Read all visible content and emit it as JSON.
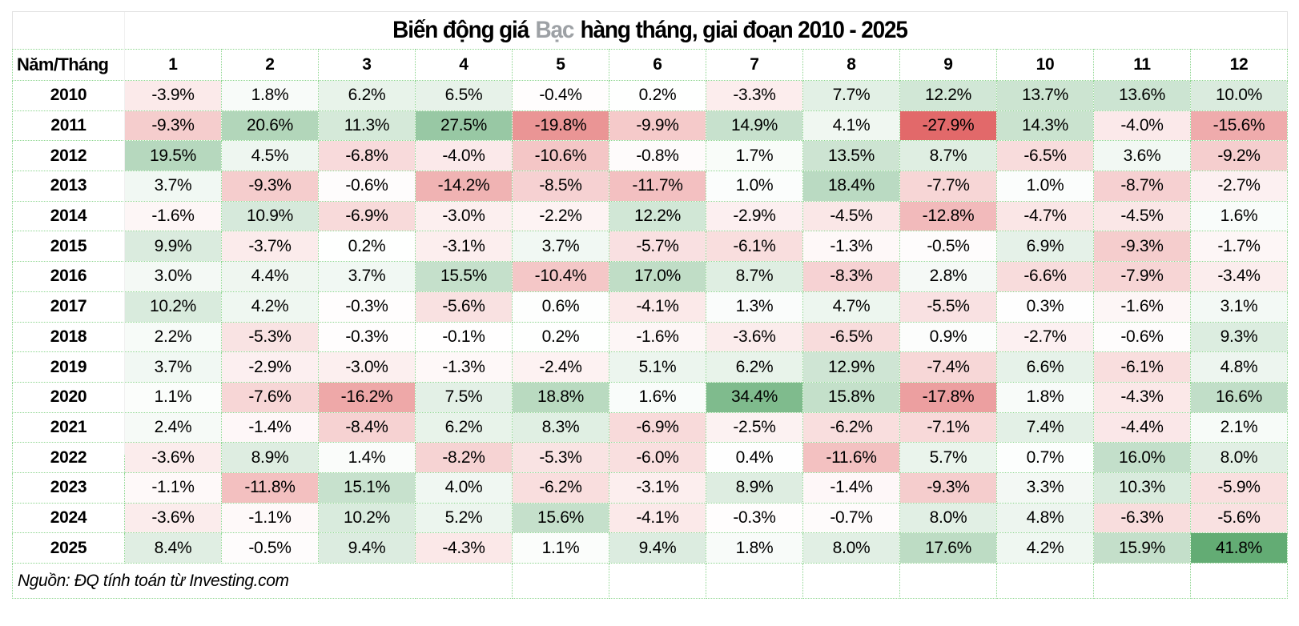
{
  "title": {
    "prefix": "Biến động giá",
    "highlight": "Bạc",
    "suffix": "hàng tháng, giai đoạn 2010 - 2025"
  },
  "table": {
    "corner_label": "Năm/Tháng",
    "month_headers": [
      "1",
      "2",
      "3",
      "4",
      "5",
      "6",
      "7",
      "8",
      "9",
      "10",
      "11",
      "12"
    ],
    "value_suffix": "%"
  },
  "footer": {
    "source": "Nguồn: ĐQ tính toán từ Investing.com"
  },
  "colors": {
    "positive_max": "#63ac74",
    "negative_max": "#e2696a",
    "grid": "#8ed690",
    "title_highlight": "#9da1a5",
    "outer_border": "#e2e2e2"
  },
  "chart_data": {
    "type": "heatmap",
    "title": "Biến động giá Bạc hàng tháng, giai đoạn 2010 - 2025",
    "xlabel": "Tháng",
    "ylabel": "Năm",
    "columns": [
      "1",
      "2",
      "3",
      "4",
      "5",
      "6",
      "7",
      "8",
      "9",
      "10",
      "11",
      "12"
    ],
    "unit": "%",
    "color_scale": {
      "min": -27.9,
      "mid": 0,
      "max": 41.8,
      "min_color": "#e2696a",
      "mid_color": "#ffffff",
      "max_color": "#63ac74"
    },
    "rows": [
      {
        "year": "2010",
        "values": [
          -3.9,
          1.8,
          6.2,
          6.5,
          -0.4,
          0.2,
          -3.3,
          7.7,
          12.2,
          13.7,
          13.6,
          10.0
        ]
      },
      {
        "year": "2011",
        "values": [
          -9.3,
          20.6,
          11.3,
          27.5,
          -19.8,
          -9.9,
          14.9,
          4.1,
          -27.9,
          14.3,
          -4.0,
          -15.6
        ]
      },
      {
        "year": "2012",
        "values": [
          19.5,
          4.5,
          -6.8,
          -4.0,
          -10.6,
          -0.8,
          1.7,
          13.5,
          8.7,
          -6.5,
          3.6,
          -9.2
        ]
      },
      {
        "year": "2013",
        "values": [
          3.7,
          -9.3,
          -0.6,
          -14.2,
          -8.5,
          -11.7,
          1.0,
          18.4,
          -7.7,
          1.0,
          -8.7,
          -2.7
        ]
      },
      {
        "year": "2014",
        "values": [
          -1.6,
          10.9,
          -6.9,
          -3.0,
          -2.2,
          12.2,
          -2.9,
          -4.5,
          -12.8,
          -4.7,
          -4.5,
          1.6
        ]
      },
      {
        "year": "2015",
        "values": [
          9.9,
          -3.7,
          0.2,
          -3.1,
          3.7,
          -5.7,
          -6.1,
          -1.3,
          -0.5,
          6.9,
          -9.3,
          -1.7
        ]
      },
      {
        "year": "2016",
        "values": [
          3.0,
          4.4,
          3.7,
          15.5,
          -10.4,
          17.0,
          8.7,
          -8.3,
          2.8,
          -6.6,
          -7.9,
          -3.4
        ]
      },
      {
        "year": "2017",
        "values": [
          10.2,
          4.2,
          -0.3,
          -5.6,
          0.6,
          -4.1,
          1.3,
          4.7,
          -5.5,
          0.3,
          -1.6,
          3.1
        ]
      },
      {
        "year": "2018",
        "values": [
          2.2,
          -5.3,
          -0.3,
          -0.1,
          0.2,
          -1.6,
          -3.6,
          -6.5,
          0.9,
          -2.7,
          -0.6,
          9.3
        ]
      },
      {
        "year": "2019",
        "values": [
          3.7,
          -2.9,
          -3.0,
          -1.3,
          -2.4,
          5.1,
          6.2,
          12.9,
          -7.4,
          6.6,
          -6.1,
          4.8
        ]
      },
      {
        "year": "2020",
        "values": [
          1.1,
          -7.6,
          -16.2,
          7.5,
          18.8,
          1.6,
          34.4,
          15.8,
          -17.8,
          1.8,
          -4.3,
          16.6
        ]
      },
      {
        "year": "2021",
        "values": [
          2.4,
          -1.4,
          -8.4,
          6.2,
          8.3,
          -6.9,
          -2.5,
          -6.2,
          -7.1,
          7.4,
          -4.4,
          2.1
        ]
      },
      {
        "year": "2022",
        "values": [
          -3.6,
          8.9,
          1.4,
          -8.2,
          -5.3,
          -6.0,
          0.4,
          -11.6,
          5.7,
          0.7,
          16.0,
          8.0
        ]
      },
      {
        "year": "2023",
        "values": [
          -1.1,
          -11.8,
          15.1,
          4.0,
          -6.2,
          -3.1,
          8.9,
          -1.4,
          -9.3,
          3.3,
          10.3,
          -5.9
        ]
      },
      {
        "year": "2024",
        "values": [
          -3.6,
          -1.1,
          10.2,
          5.2,
          15.6,
          -4.1,
          -0.3,
          -0.7,
          8.0,
          4.8,
          -6.3,
          -5.6
        ]
      },
      {
        "year": "2025",
        "values": [
          8.4,
          -0.5,
          9.4,
          -4.3,
          1.1,
          9.4,
          1.8,
          8.0,
          17.6,
          4.2,
          15.9,
          41.8
        ]
      }
    ]
  }
}
